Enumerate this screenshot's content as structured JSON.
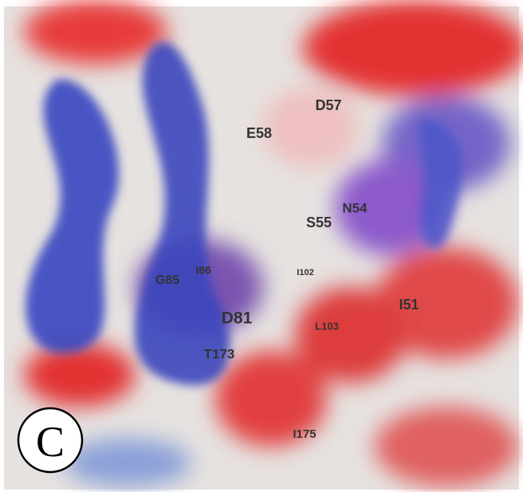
{
  "panel_label": "C",
  "residue_labels": [
    "D57",
    "E58",
    "N54",
    "S55",
    "I86",
    "G85",
    "I102",
    "D81",
    "L103",
    "I51",
    "T173",
    "I175"
  ]
}
